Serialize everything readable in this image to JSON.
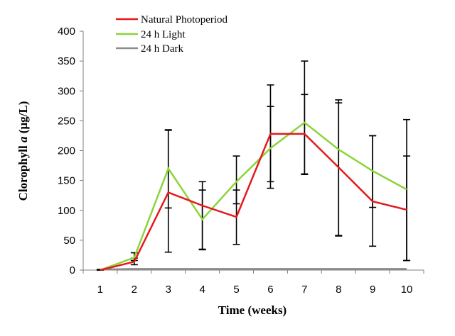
{
  "chart_data": {
    "type": "line",
    "xlabel": "Time (weeks)",
    "ylabel_prefix": "Clorophyll ",
    "ylabel_italic": "a",
    "ylabel_suffix": " (µg/L)",
    "x": [
      1,
      2,
      3,
      4,
      5,
      6,
      7,
      8,
      9,
      10
    ],
    "ylim": [
      0,
      400
    ],
    "yticks": [
      0,
      50,
      100,
      150,
      200,
      250,
      300,
      350,
      400
    ],
    "grid": false,
    "legend_position": "top-left",
    "series": [
      {
        "name": "Natural Photoperiod",
        "color": "#e41a1c",
        "values": [
          0,
          14,
          130,
          108,
          89,
          228,
          228,
          172,
          115,
          101
        ],
        "err_upper": [
          1,
          6,
          105,
          40,
          45,
          82,
          66,
          108,
          110,
          90
        ],
        "err_lower": [
          0,
          5,
          100,
          73,
          46,
          91,
          67,
          115,
          75,
          85
        ]
      },
      {
        "name": "24 h Light",
        "color": "#8cd43a",
        "values": [
          0,
          21,
          170,
          85,
          148,
          204,
          247,
          202,
          166,
          135
        ],
        "err_upper": [
          1,
          8,
          64,
          49,
          43,
          70,
          103,
          83,
          59,
          117
        ],
        "err_lower": [
          0,
          5,
          66,
          51,
          37,
          56,
          87,
          144,
          61,
          119
        ]
      },
      {
        "name": "24 h Dark",
        "color": "#8c8c8c",
        "values": [
          1,
          2,
          2,
          2,
          2,
          2,
          2,
          2,
          2,
          2
        ],
        "err_upper": [
          0,
          0,
          0,
          0,
          0,
          0,
          0,
          0,
          0,
          0
        ],
        "err_lower": [
          0,
          0,
          0,
          0,
          0,
          0,
          0,
          0,
          0,
          0
        ]
      }
    ]
  }
}
